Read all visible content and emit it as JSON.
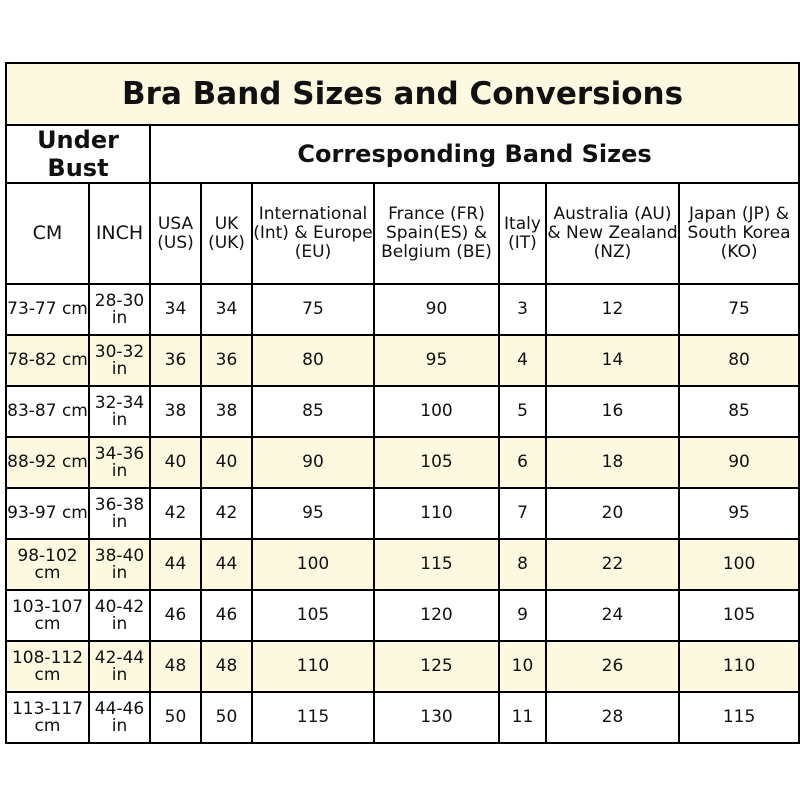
{
  "title": "Bra Band Sizes and Conversions",
  "group_left": "Under Bust",
  "group_right": "Corresponding Band Sizes",
  "columns": [
    "CM",
    "INCH",
    "USA (US)",
    "UK (UK)",
    "International (Int) & Europe (EU)",
    "France (FR) Spain(ES) & Belgium (BE)",
    "Italy (IT)",
    "Australia (AU) & New Zealand (NZ)",
    "Japan (JP) & South Korea (KO)"
  ],
  "rows": [
    [
      "73-77 cm",
      "28-30 in",
      "34",
      "34",
      "75",
      "90",
      "3",
      "12",
      "75"
    ],
    [
      "78-82 cm",
      "30-32 in",
      "36",
      "36",
      "80",
      "95",
      "4",
      "14",
      "80"
    ],
    [
      "83-87 cm",
      "32-34 in",
      "38",
      "38",
      "85",
      "100",
      "5",
      "16",
      "85"
    ],
    [
      "88-92 cm",
      "34-36 in",
      "40",
      "40",
      "90",
      "105",
      "6",
      "18",
      "90"
    ],
    [
      "93-97 cm",
      "36-38 in",
      "42",
      "42",
      "95",
      "110",
      "7",
      "20",
      "95"
    ],
    [
      "98-102 cm",
      "38-40 in",
      "44",
      "44",
      "100",
      "115",
      "8",
      "22",
      "100"
    ],
    [
      "103-107 cm",
      "40-42 in",
      "46",
      "46",
      "105",
      "120",
      "9",
      "24",
      "105"
    ],
    [
      "108-112 cm",
      "42-44 in",
      "48",
      "48",
      "110",
      "125",
      "10",
      "26",
      "110"
    ],
    [
      "113-117 cm",
      "44-46 in",
      "50",
      "50",
      "115",
      "130",
      "11",
      "28",
      "115"
    ]
  ],
  "row_highlight_color": "#fcf9e0"
}
